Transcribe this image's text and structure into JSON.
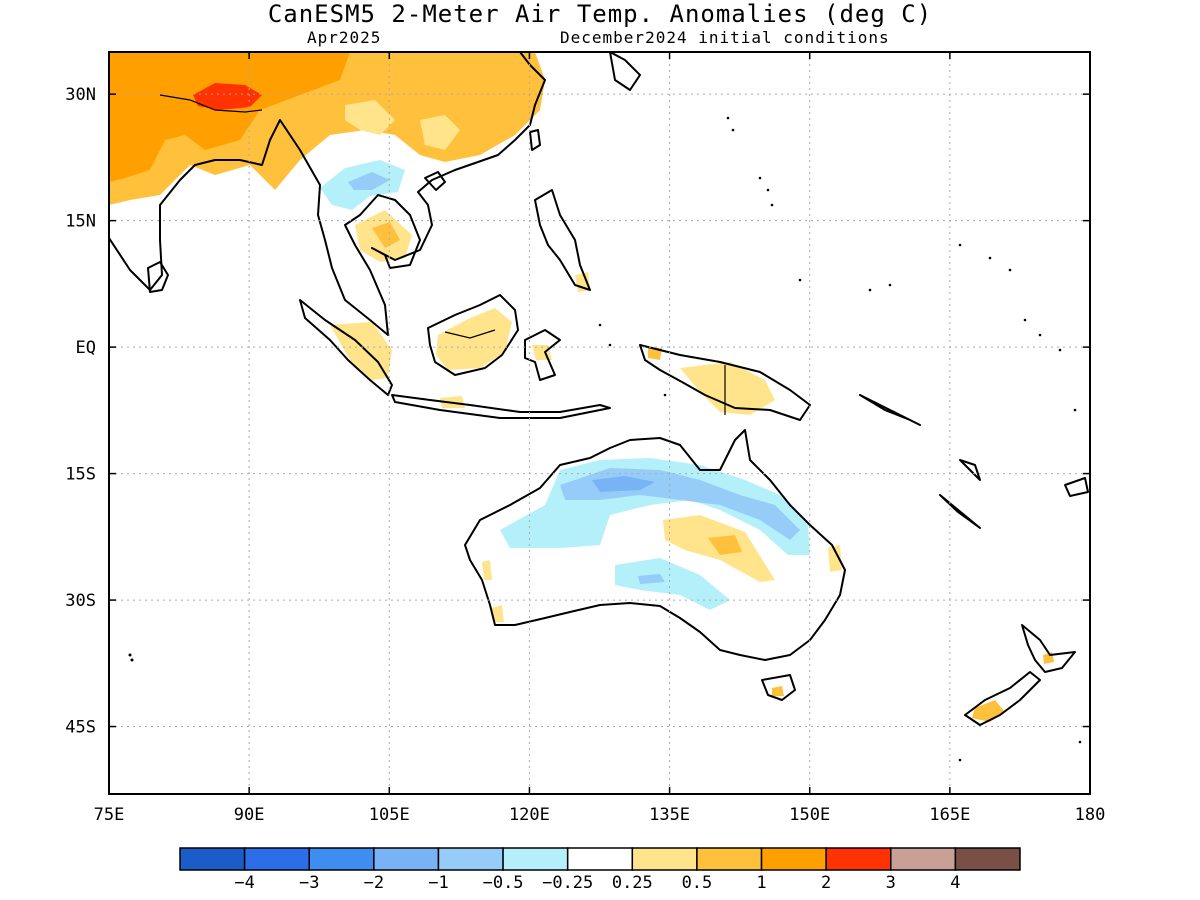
{
  "title": "CanESM5 2-Meter Air Temp. Anomalies (deg C)",
  "valid_month": "Apr2025",
  "initial_conditions": "December2024 initial conditions",
  "map": {
    "lon_range": [
      75,
      180
    ],
    "lat_range": [
      -53,
      35
    ],
    "lat_ticks": [
      {
        "value": 30,
        "label": "30N"
      },
      {
        "value": 15,
        "label": "15N"
      },
      {
        "value": 0,
        "label": "EQ"
      },
      {
        "value": -15,
        "label": "15S"
      },
      {
        "value": -30,
        "label": "30S"
      },
      {
        "value": -45,
        "label": "45S"
      }
    ],
    "lon_ticks": [
      {
        "value": 75,
        "label": "75E"
      },
      {
        "value": 90,
        "label": "90E"
      },
      {
        "value": 105,
        "label": "105E"
      },
      {
        "value": 120,
        "label": "120E"
      },
      {
        "value": 135,
        "label": "135E"
      },
      {
        "value": 150,
        "label": "150E"
      },
      {
        "value": 165,
        "label": "165E"
      },
      {
        "value": 180,
        "label": "180"
      }
    ],
    "gridlines": "dotted"
  },
  "colorbar": {
    "colors": [
      "#1a5cc8",
      "#2b6ee8",
      "#3d8ef0",
      "#78b4f5",
      "#96ccf8",
      "#b4f0fa",
      "#ffffff",
      "#ffe48c",
      "#ffc03c",
      "#ffa000",
      "#ff3200",
      "#c8a096",
      "#785046"
    ],
    "labels": [
      "−4",
      "−3",
      "−2",
      "−1",
      "−0.5",
      "−0.25",
      "0.25",
      "0.5",
      "1",
      "2",
      "3",
      "4"
    ]
  },
  "anomaly_colors": {
    "cold_weak": "#b4f0fa",
    "cold_mid": "#96ccf8",
    "cold_strong": "#78b4f5",
    "warm_weak": "#ffe48c",
    "warm_mid": "#ffc03c",
    "warm_strong": "#ffa000",
    "warm_extreme": "#ff3200"
  }
}
